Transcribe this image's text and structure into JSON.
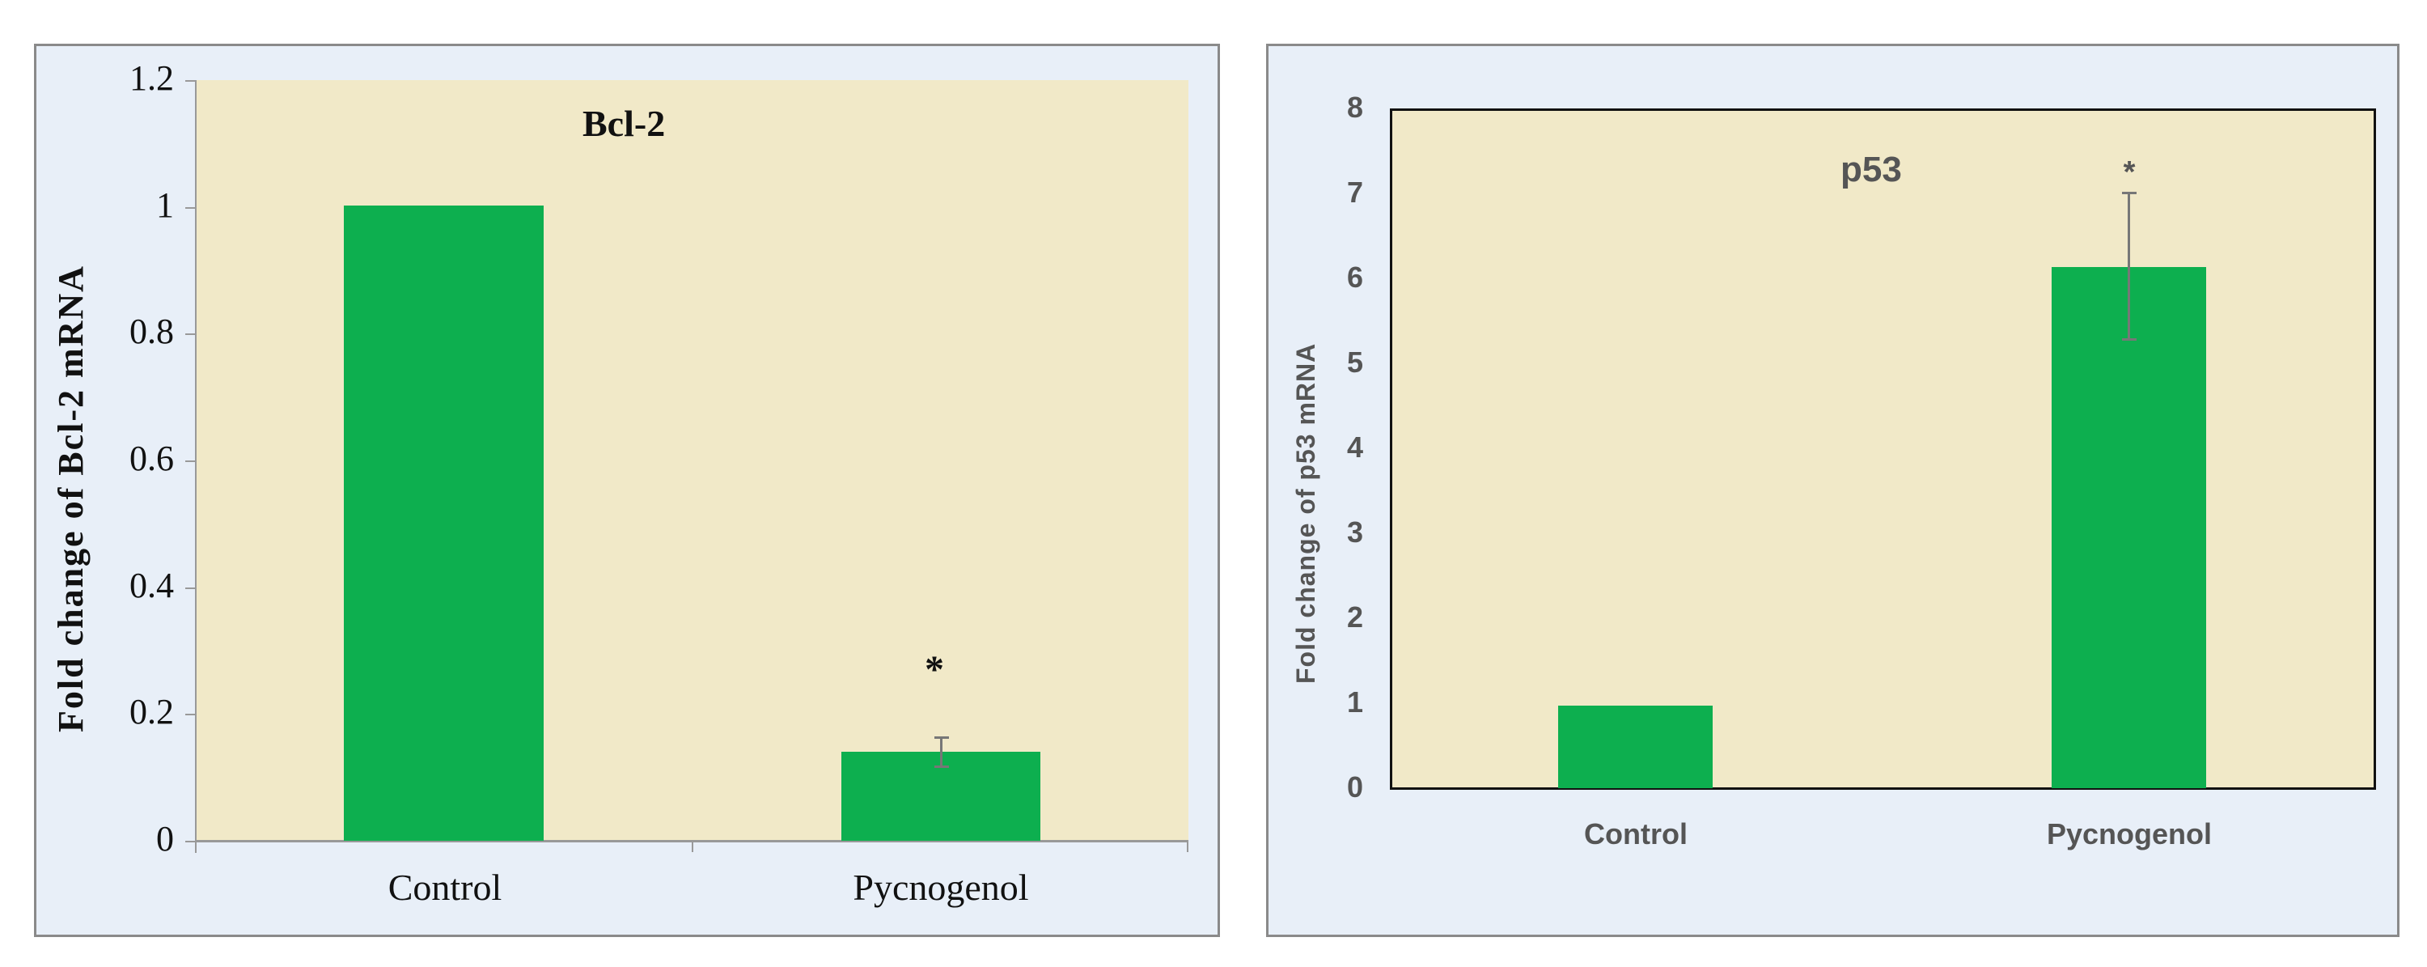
{
  "chart_data": [
    {
      "type": "bar",
      "title": "Bcl-2",
      "xlabel": "",
      "ylabel": "Fold change of Bcl-2  mRNA",
      "categories": [
        "Control",
        "Pycnogenol"
      ],
      "values": [
        1.0,
        0.14
      ],
      "error": [
        0.0,
        0.024
      ],
      "significance": [
        "",
        "*"
      ],
      "ylim": [
        0,
        1.2
      ],
      "yticks": [
        "0",
        "0.2",
        "0.4",
        "0.6",
        "0.8",
        "1",
        "1.2"
      ],
      "grid": false,
      "legend": null,
      "bar_color": "#0daf4f",
      "plot_bg": "#f1e9c8",
      "panel_bg": "#e8eff8"
    },
    {
      "type": "bar",
      "title": "p53",
      "xlabel": "",
      "ylabel": "Fold change of p53  mRNA",
      "categories": [
        "Control",
        "Pycnogenol"
      ],
      "values": [
        0.98,
        6.1
      ],
      "error": [
        0.0,
        0.85
      ],
      "significance": [
        "",
        "*"
      ],
      "ylim": [
        0,
        8
      ],
      "yticks": [
        "0",
        "1",
        "2",
        "3",
        "4",
        "5",
        "6",
        "7",
        "8"
      ],
      "grid": false,
      "legend": null,
      "bar_color": "#0daf4f",
      "plot_bg": "#f1e9c8",
      "panel_bg": "#e8eff8"
    }
  ]
}
